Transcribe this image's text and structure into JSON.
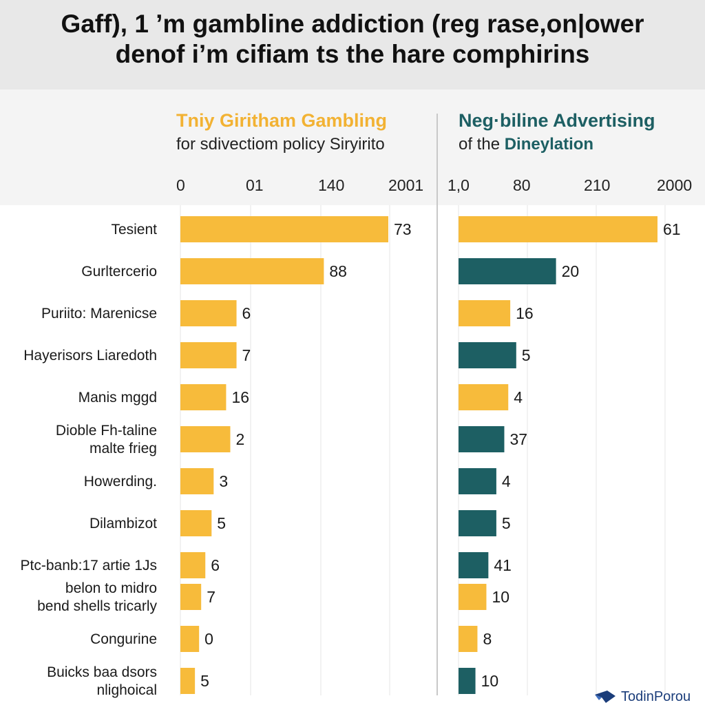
{
  "title": {
    "line1": "Gaff), 1 ’m gambline addiction (reg rase,on|ower",
    "line2": "denof i’m cifiam ts the hare comphirins"
  },
  "left_panel": {
    "title": "Tniy Giritham Gambling",
    "subtitle": "for sdivectiom policy Siryirito",
    "ticks": [
      "0",
      "01",
      "140",
      "2001"
    ]
  },
  "right_panel": {
    "title": "Neg·biline Advertising",
    "subtitle_prefix": "of the ",
    "subtitle_emph": "Dineylation",
    "ticks": [
      "1,0",
      "80",
      "210",
      "2000"
    ]
  },
  "logo": {
    "text": "TodinPorou",
    "icon": "bird-logo-icon"
  },
  "colors": {
    "yellow": "#f7bb3b",
    "teal": "#1d5f63",
    "divider": "#c8c8c8"
  },
  "chart_data": [
    {
      "type": "bar",
      "orientation": "horizontal",
      "title": "Tniy Giritham Gambling",
      "subtitle": "for sdivectiom policy Siryirito",
      "x_ticks": [
        "0",
        "01",
        "140",
        "2001"
      ],
      "categories": [
        [
          "Tesient"
        ],
        [
          "Gurltercerio"
        ],
        [
          "Puriito: Marenicse"
        ],
        [
          "Hayerisors Liaredoth"
        ],
        [
          "Manis mggd"
        ],
        [
          "Dioble Fh-taline",
          "malte frieg"
        ],
        [
          "Howerding."
        ],
        [
          "Dilambizot"
        ],
        [
          "Ptc-banb:17 artie 1Js"
        ],
        [
          "belon to midro",
          "bend shells tricarly"
        ],
        [
          "Congurine"
        ],
        [
          "Buicks baa dsors",
          "nlighoical"
        ]
      ],
      "value_labels": [
        "73",
        "88",
        "6",
        "7",
        "16",
        "2",
        "3",
        "5",
        "6",
        "7",
        "0",
        "5"
      ],
      "bar_lengths": [
        1.0,
        0.69,
        0.27,
        0.27,
        0.22,
        0.24,
        0.16,
        0.15,
        0.12,
        0.1,
        0.09,
        0.07
      ],
      "bar_colors": [
        "yellow",
        "yellow",
        "yellow",
        "yellow",
        "yellow",
        "yellow",
        "yellow",
        "yellow",
        "yellow",
        "yellow",
        "yellow",
        "yellow"
      ],
      "legend": "none"
    },
    {
      "type": "bar",
      "orientation": "horizontal",
      "title": "Neg·biline Advertising",
      "subtitle": "of the Dineylation",
      "x_ticks": [
        "1,0",
        "80",
        "210",
        "2000"
      ],
      "value_labels": [
        "61",
        "20",
        "16",
        "5",
        "4",
        "37",
        "4",
        "5",
        "41",
        "10",
        "8",
        "10"
      ],
      "bar_lengths": [
        1.0,
        0.49,
        0.26,
        0.29,
        0.25,
        0.23,
        0.19,
        0.19,
        0.15,
        0.14,
        0.095,
        0.085
      ],
      "bar_colors": [
        "yellow",
        "teal",
        "yellow",
        "teal",
        "yellow",
        "teal",
        "teal",
        "teal",
        "teal",
        "yellow",
        "yellow",
        "teal"
      ],
      "legend": "none"
    }
  ]
}
